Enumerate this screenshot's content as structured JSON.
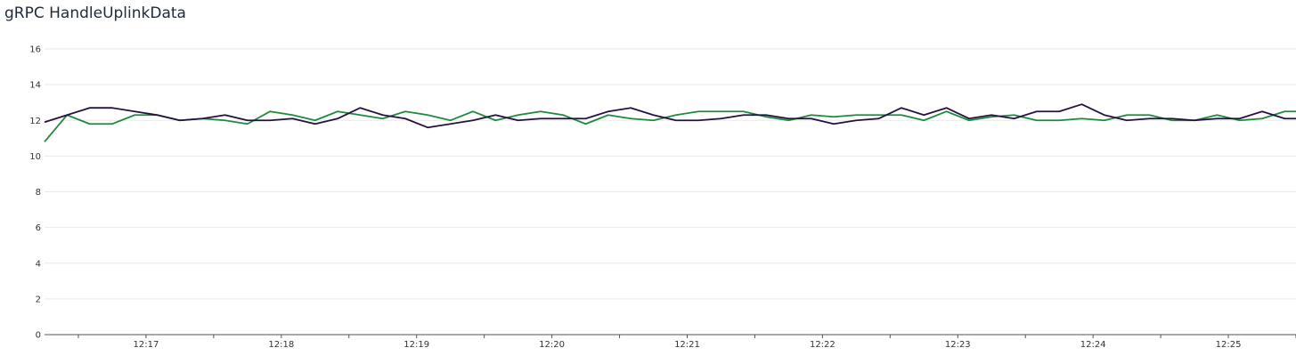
{
  "chart_data": {
    "type": "line",
    "title": "gRPC HandleUplinkData",
    "xlabel": "",
    "ylabel": "",
    "ylim": [
      0,
      16
    ],
    "yticks": [
      0,
      2,
      4,
      6,
      8,
      10,
      12,
      14,
      16
    ],
    "x_time_range": [
      "12:16:15",
      "12:25:30"
    ],
    "x_tick_labels": [
      "12:17",
      "12:18",
      "12:19",
      "12:20",
      "12:21",
      "12:22",
      "12:23",
      "12:24",
      "12:25"
    ],
    "grid": true,
    "legend": "none",
    "x": [
      "12:16:15",
      "12:16:25",
      "12:16:35",
      "12:16:45",
      "12:16:55",
      "12:17:05",
      "12:17:15",
      "12:17:25",
      "12:17:35",
      "12:17:45",
      "12:17:55",
      "12:18:05",
      "12:18:15",
      "12:18:25",
      "12:18:35",
      "12:18:45",
      "12:18:55",
      "12:19:05",
      "12:19:15",
      "12:19:25",
      "12:19:35",
      "12:19:45",
      "12:19:55",
      "12:20:05",
      "12:20:15",
      "12:20:25",
      "12:20:35",
      "12:20:45",
      "12:20:55",
      "12:21:05",
      "12:21:15",
      "12:21:25",
      "12:21:35",
      "12:21:45",
      "12:21:55",
      "12:22:05",
      "12:22:15",
      "12:22:25",
      "12:22:35",
      "12:22:45",
      "12:22:55",
      "12:23:05",
      "12:23:15",
      "12:23:25",
      "12:23:35",
      "12:23:45",
      "12:23:55",
      "12:24:05",
      "12:24:15",
      "12:24:25",
      "12:24:35",
      "12:24:45",
      "12:24:55",
      "12:25:05",
      "12:25:15",
      "12:25:25",
      "12:25:30"
    ],
    "series": [
      {
        "color": "#1e8a3e",
        "values": [
          10.8,
          12.3,
          11.8,
          11.8,
          12.3,
          12.3,
          12.0,
          12.1,
          12.0,
          11.8,
          12.5,
          12.3,
          12.0,
          12.5,
          12.3,
          12.1,
          12.5,
          12.3,
          12.0,
          12.5,
          12.0,
          12.3,
          12.5,
          12.3,
          11.8,
          12.3,
          12.1,
          12.0,
          12.3,
          12.5,
          12.5,
          12.5,
          12.2,
          12.0,
          12.3,
          12.2,
          12.3,
          12.3,
          12.3,
          12.0,
          12.5,
          12.0,
          12.2,
          12.3,
          12.0,
          12.0,
          12.1,
          12.0,
          12.3,
          12.3,
          12.0,
          12.0,
          12.3,
          12.0,
          12.1,
          12.5,
          12.5
        ]
      },
      {
        "color": "#26103f",
        "values": [
          11.9,
          12.3,
          12.7,
          12.7,
          12.5,
          12.3,
          12.0,
          12.1,
          12.3,
          12.0,
          12.0,
          12.1,
          11.8,
          12.1,
          12.7,
          12.3,
          12.1,
          11.6,
          11.8,
          12.0,
          12.3,
          12.0,
          12.1,
          12.1,
          12.1,
          12.5,
          12.7,
          12.3,
          12.0,
          12.0,
          12.1,
          12.3,
          12.3,
          12.1,
          12.1,
          11.8,
          12.0,
          12.1,
          12.7,
          12.3,
          12.7,
          12.1,
          12.3,
          12.1,
          12.5,
          12.5,
          12.9,
          12.3,
          12.0,
          12.1,
          12.1,
          12.0,
          12.1,
          12.1,
          12.5,
          12.1,
          12.1
        ]
      }
    ]
  }
}
